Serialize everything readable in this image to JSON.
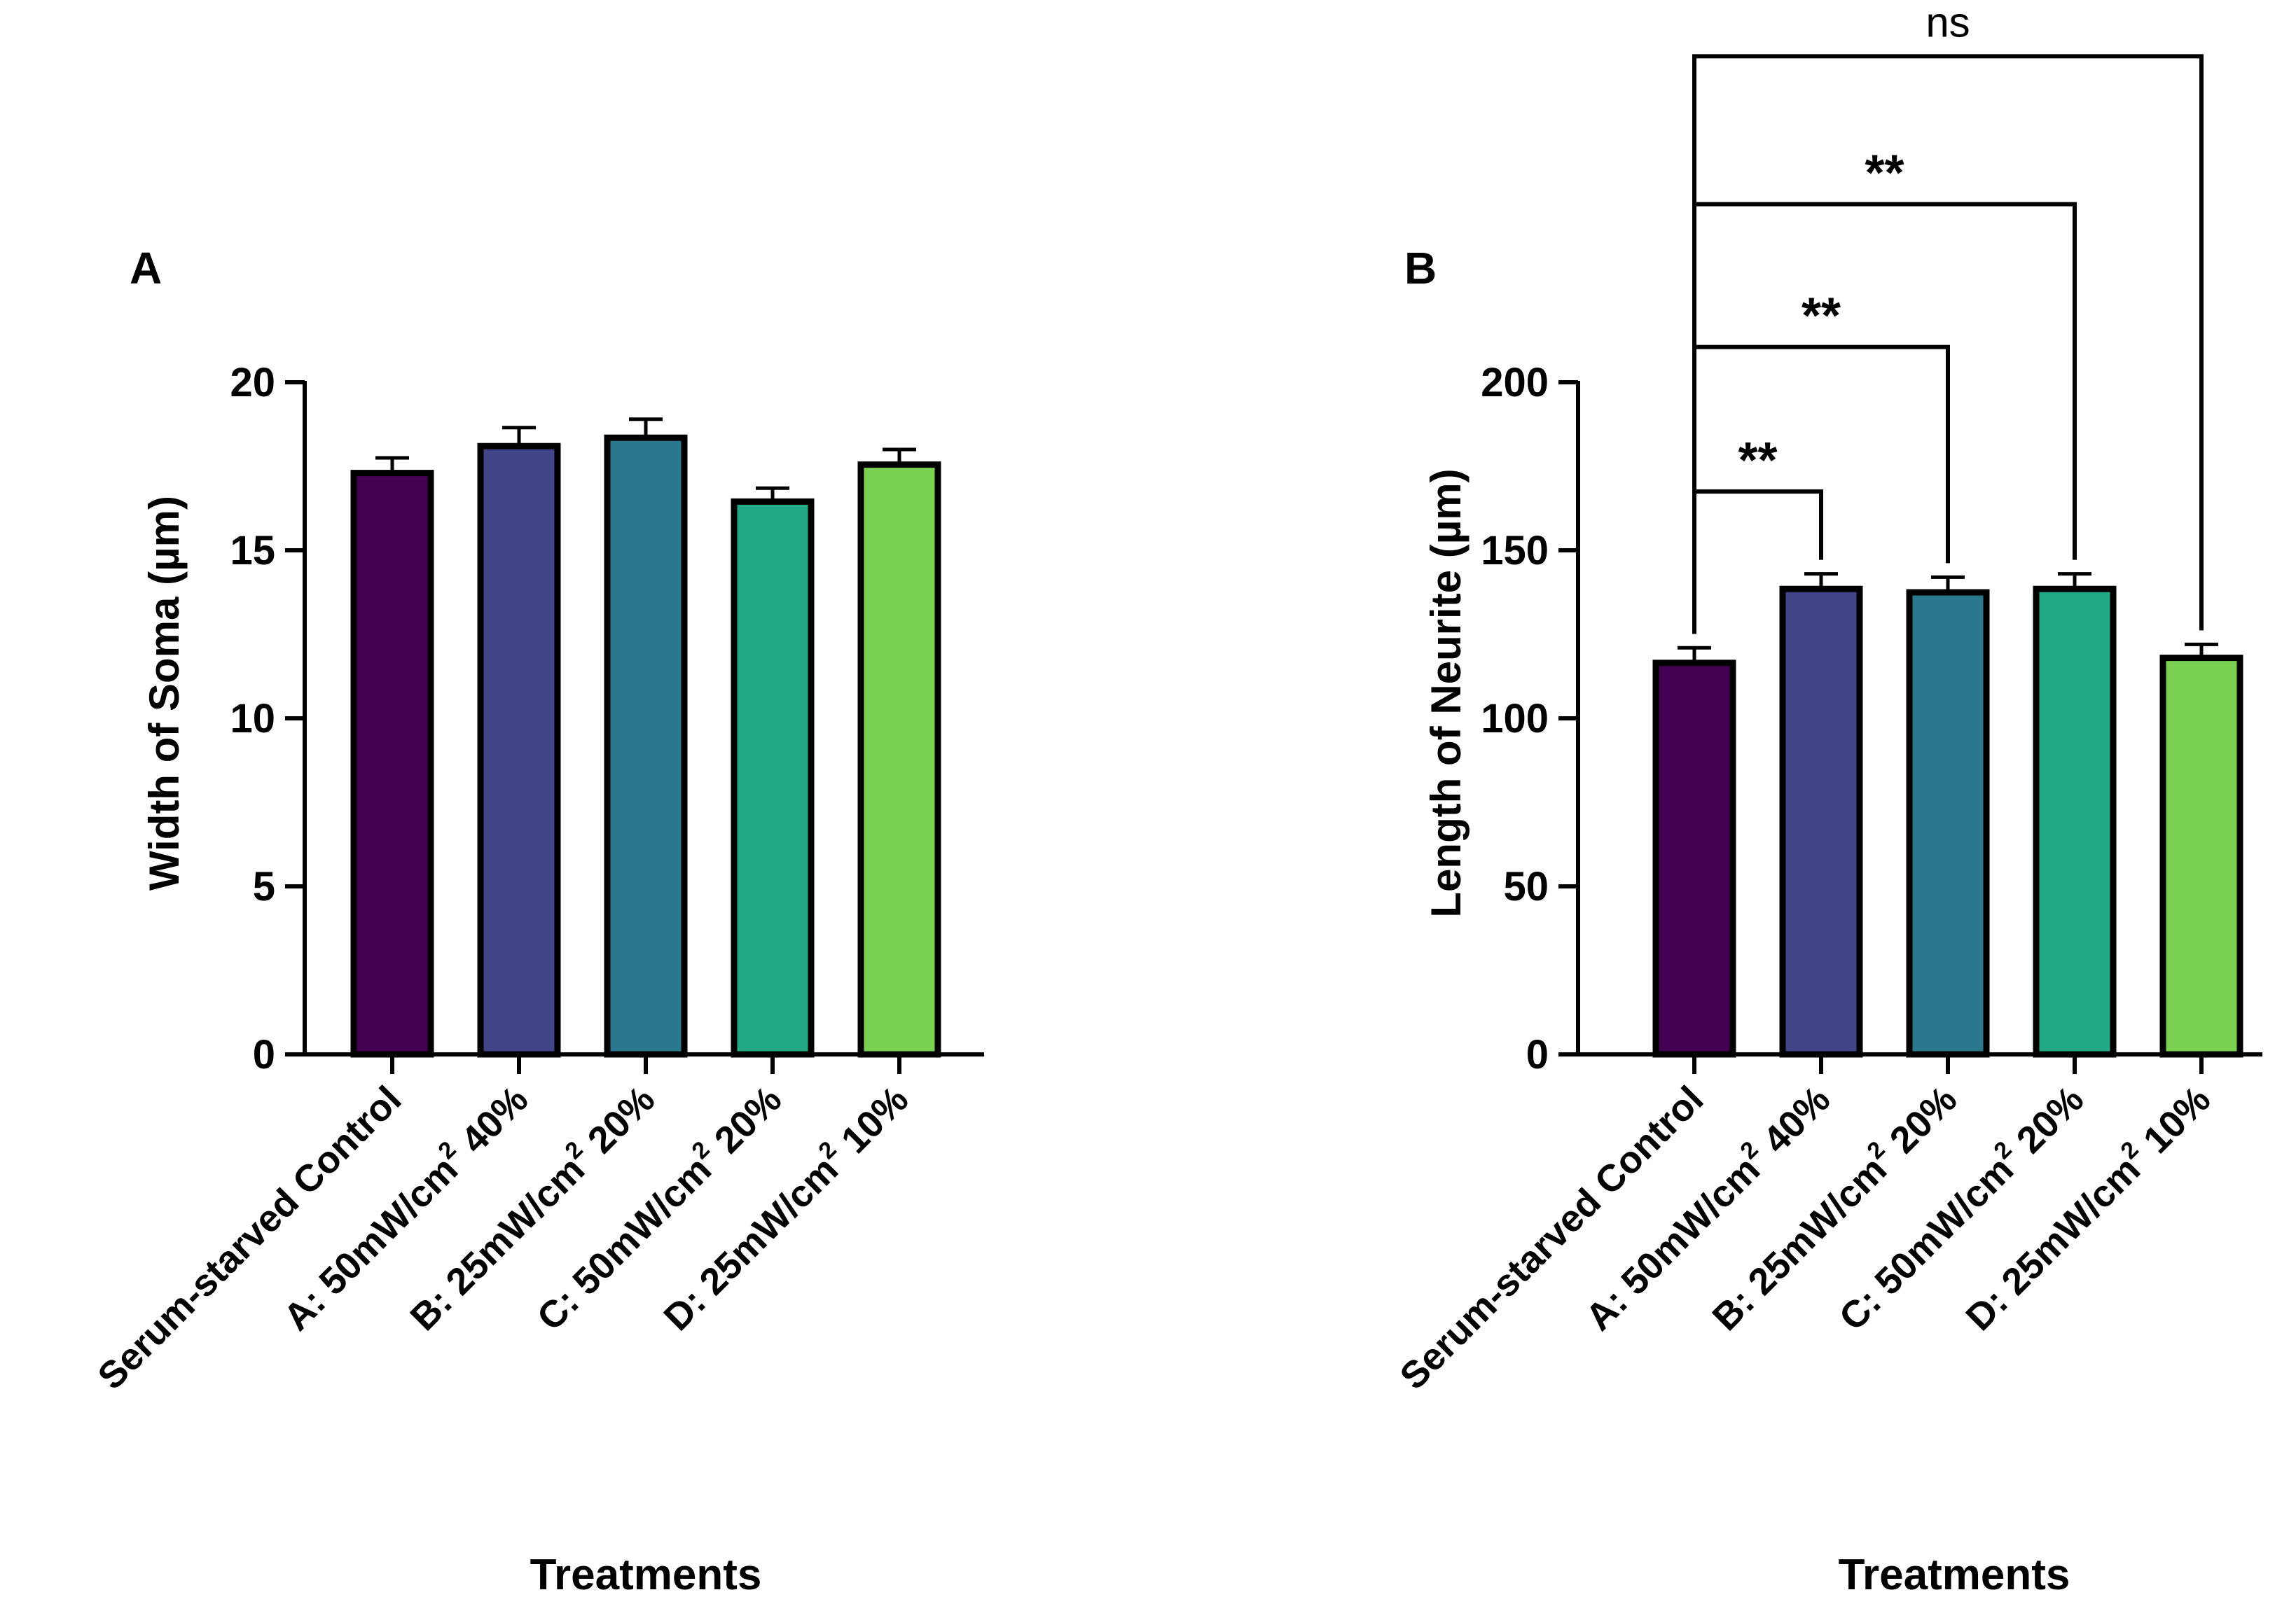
{
  "chart_data": [
    {
      "panel": "A",
      "type": "bar",
      "title": "",
      "xlabel": "Treatments",
      "ylabel": "Width of Soma (µm)",
      "ylim": [
        0,
        20
      ],
      "yticks": [
        0,
        5,
        10,
        15,
        20
      ],
      "categories": [
        {
          "pre": "Serum-starved Control",
          "sup": "",
          "post": ""
        },
        {
          "pre": "A: 50mW/cm",
          "sup": "2",
          "post": " 40%"
        },
        {
          "pre": "B: 25mW/cm",
          "sup": "2",
          "post": " 20%"
        },
        {
          "pre": "C: 50mW/cm",
          "sup": "2",
          "post": " 20%"
        },
        {
          "pre": "D: 25mW/cm",
          "sup": "2",
          "post": " 10%"
        }
      ],
      "values": [
        17.3,
        18.1,
        18.35,
        16.45,
        17.55
      ],
      "errors": [
        0.45,
        0.55,
        0.55,
        0.4,
        0.45
      ],
      "colors": [
        "#440154",
        "#414487",
        "#2a788e",
        "#22a884",
        "#7ad151"
      ],
      "comparisons": []
    },
    {
      "panel": "B",
      "type": "bar",
      "title": "",
      "xlabel": "Treatments",
      "ylabel": "Length of Neurite  (µm)",
      "ylim": [
        0,
        200
      ],
      "yticks": [
        0,
        50,
        100,
        150,
        200
      ],
      "categories": [
        {
          "pre": "Serum-starved Control",
          "sup": "",
          "post": ""
        },
        {
          "pre": "A: 50mW/cm",
          "sup": "2",
          "post": " 40%"
        },
        {
          "pre": "B: 25mW/cm",
          "sup": "2",
          "post": " 20%"
        },
        {
          "pre": "C: 50mW/cm",
          "sup": "2",
          "post": " 20%"
        },
        {
          "pre": "D: 25mW/cm",
          "sup": "2",
          "post": " 10%"
        }
      ],
      "values": [
        116.5,
        138.5,
        137.5,
        138.5,
        118.0
      ],
      "errors": [
        4.5,
        4.5,
        4.5,
        4.5,
        4.0
      ],
      "colors": [
        "#440154",
        "#414487",
        "#2a788e",
        "#22a884",
        "#7ad151"
      ],
      "comparisons": [
        {
          "from": 0,
          "to": 1,
          "label": "**",
          "bracket_y": 167.5
        },
        {
          "from": 0,
          "to": 2,
          "label": "**",
          "bracket_y": 210.5
        },
        {
          "from": 0,
          "to": 3,
          "label": "**",
          "bracket_y": 253
        },
        {
          "from": 0,
          "to": 4,
          "label": "ns",
          "bracket_y": 297
        }
      ]
    }
  ]
}
